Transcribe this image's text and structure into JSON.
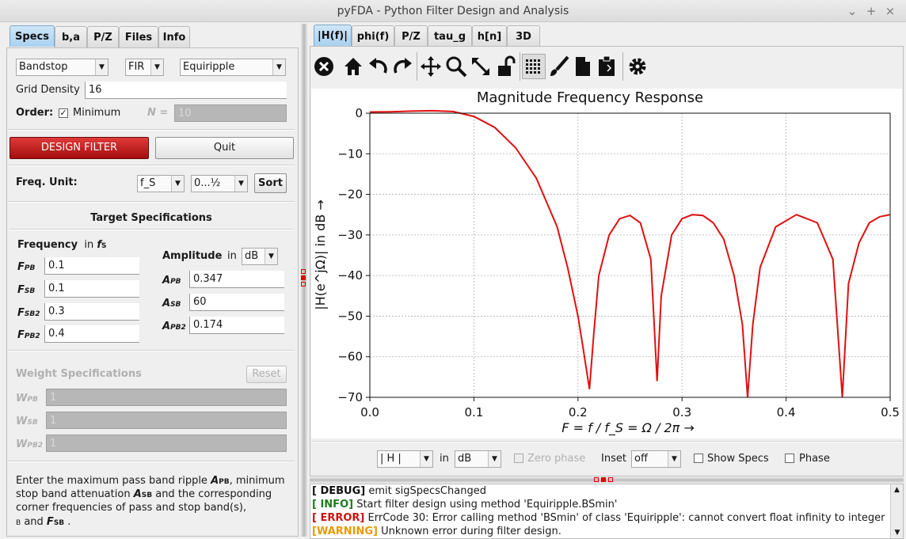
{
  "window": {
    "title": "pyFDA - Python Filter Design and Analysis",
    "controls": [
      "⌄",
      "+",
      "×"
    ]
  },
  "left_tabs": [
    "Specs",
    "b,a",
    "P/Z",
    "Files",
    "Info"
  ],
  "specs": {
    "response_type": "Bandstop",
    "filter_type": "FIR",
    "design_method": "Equiripple",
    "grid_density_label": "Grid Density",
    "grid_density_value": "16",
    "order_label": "Order:",
    "order_min_label": "Minimum",
    "order_n_label": "N =",
    "order_n_value": "10",
    "design_button": "DESIGN FILTER",
    "quit_button": "Quit",
    "freq_unit_label": "Freq. Unit:",
    "freq_unit_value": "f_S",
    "freq_range_value": "0...½",
    "sort_button": "Sort",
    "target_title": "Target Specifications",
    "frequency_label": "Frequency",
    "frequency_in": "in",
    "frequency_unit": "f",
    "frequency_unit_sub": "S",
    "amplitude_label": "Amplitude",
    "amplitude_in": "in",
    "amplitude_unit": "dB",
    "freq_specs": [
      {
        "name": "F",
        "sub": "PB",
        "value": "0.1"
      },
      {
        "name": "F",
        "sub": "SB",
        "value": "0.1"
      },
      {
        "name": "F",
        "sub": "SB2",
        "value": "0.3"
      },
      {
        "name": "F",
        "sub": "PB2",
        "value": "0.4"
      }
    ],
    "amp_specs": [
      {
        "name": "A",
        "sub": "PB",
        "value": "0.347"
      },
      {
        "name": "A",
        "sub": "SB",
        "value": "60"
      },
      {
        "name": "A",
        "sub": "PB2",
        "value": "0.174"
      }
    ],
    "weight_title": "Weight Specifications",
    "reset_button": "Reset",
    "weights": [
      {
        "name": "W",
        "sub": "PB",
        "value": "1"
      },
      {
        "name": "W",
        "sub": "SB",
        "value": "1"
      },
      {
        "name": "W",
        "sub": "PB2",
        "value": "1"
      }
    ],
    "info_text": {
      "line1": "Enter the maximum pass band ripple ",
      "a_pb": "A",
      "a_pb_sub": "PB",
      "line1b": ", minimum",
      "line2": "stop band attenuation ",
      "a_sb": "A",
      "a_sb_sub": "SB",
      "line2b": " and the corresponding",
      "line3": "corner frequencies of pass and stop band(s),",
      "line4_sub": "B",
      "line4": "  and ",
      "f_sb": "F",
      "f_sb_sub": "SB",
      "line4b": " ."
    }
  },
  "right_tabs": [
    "|H(f)|",
    "phi(f)",
    "P/Z",
    "tau_g",
    "h[n]",
    "3D"
  ],
  "toolbar_icons": [
    "close-icon",
    "home-icon",
    "back-icon",
    "forward-icon",
    "pan-icon",
    "zoom-icon",
    "fullscreen-icon",
    "lock-icon",
    "grid-icon",
    "brush-icon",
    "document-icon",
    "clipboard-icon",
    "gear-icon"
  ],
  "plot_controls": {
    "magnitude_select": "| H |",
    "in_label": "in",
    "unit_select": "dB",
    "zero_phase_label": "Zero phase",
    "inset_label": "Inset",
    "inset_value": "off",
    "show_specs_label": "Show Specs",
    "phase_label": "Phase"
  },
  "console": [
    {
      "tag": "[ DEBUG]",
      "color": "#111111",
      "text": "emit sigSpecsChanged"
    },
    {
      "tag": "[ INFO]",
      "color": "#1e7a1e",
      "text": "Start filter design using method 'Equiripple.BSmin'"
    },
    {
      "tag": "[ ERROR]",
      "color": "#d01010",
      "text": "ErrCode 30: Error calling method 'BSmin' of class 'Equiripple': cannot convert float infinity to integer"
    },
    {
      "tag": "[WARNING]",
      "color": "#e89a00",
      "text": "Unknown error during filter design."
    }
  ],
  "chart_data": {
    "type": "line",
    "title": "Magnitude Frequency Response",
    "xlabel": "F = f / f_S = Ω / 2π →",
    "ylabel": "|H(e^jΩ)| in dB →",
    "xlim": [
      0.0,
      0.5
    ],
    "ylim": [
      -70,
      0
    ],
    "xticks": [
      "0.0",
      "0.1",
      "0.2",
      "0.3",
      "0.4",
      "0.5"
    ],
    "yticks": [
      "0",
      "−10",
      "−20",
      "−30",
      "−40",
      "−50",
      "−60",
      "−70"
    ],
    "grid": true,
    "line_color": "#e01010",
    "series": [
      {
        "x": [
          0.0,
          0.02,
          0.04,
          0.06,
          0.08,
          0.1,
          0.12,
          0.14,
          0.16,
          0.18,
          0.19,
          0.2,
          0.205,
          0.211,
          0.215,
          0.22,
          0.23,
          0.24,
          0.25,
          0.26,
          0.27,
          0.276,
          0.28,
          0.29,
          0.3,
          0.31,
          0.32,
          0.33,
          0.34,
          0.35,
          0.358,
          0.363,
          0.368,
          0.375,
          0.39,
          0.41,
          0.43,
          0.445,
          0.454,
          0.46,
          0.47,
          0.48,
          0.49,
          0.5
        ],
        "y": [
          0.3,
          0.35,
          0.5,
          0.6,
          0.4,
          -0.8,
          -3.5,
          -8.5,
          -16,
          -28,
          -38,
          -50,
          -58,
          -68,
          -55,
          -40,
          -30,
          -26,
          -25.2,
          -27,
          -36,
          -66,
          -45,
          -30,
          -26,
          -25,
          -25.2,
          -27,
          -31,
          -40,
          -52,
          -70,
          -52,
          -38,
          -28,
          -25,
          -27,
          -36,
          -70,
          -42,
          -32,
          -27,
          -25.5,
          -25
        ]
      }
    ]
  }
}
